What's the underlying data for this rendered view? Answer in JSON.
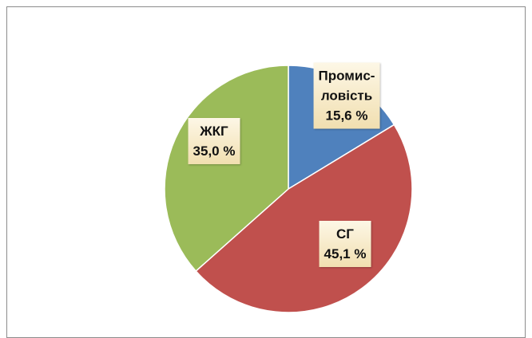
{
  "chart_data": {
    "type": "pie",
    "categories": [
      "Промис-\nловість",
      "СГ",
      "ЖКГ"
    ],
    "values": [
      15.6,
      45.1,
      35.0
    ],
    "value_labels": [
      "15,6 %",
      "45,1 %",
      "35,0 %"
    ],
    "colors": [
      "#4f81bd",
      "#c0504d",
      "#9bbb59"
    ]
  }
}
